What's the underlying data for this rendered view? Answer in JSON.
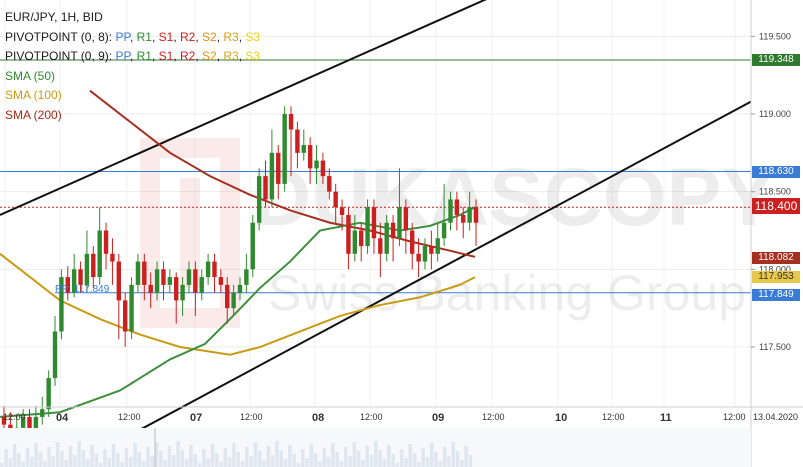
{
  "legend": {
    "title": "EUR/JPY, 1H, BID",
    "pivot1_prefix": "PIVOTPOINT (0, 8):",
    "pivot2_prefix": "PIVOTPOINT (0, 9):",
    "pivot_items": [
      "PP",
      "R1",
      "S1",
      "R2",
      "S2",
      "R3",
      "S3"
    ],
    "sma50": "SMA (50)",
    "sma100": "SMA (100)",
    "sma200": "SMA (200)"
  },
  "price_tags": {
    "top_r": "119.348",
    "r": "118.630",
    "current": "118.400",
    "sma200": "118.082",
    "sma100": "117.953",
    "pp": "117.849"
  },
  "pp_label": "PP: 117.849",
  "colors": {
    "candle_up": "#2f8a2f",
    "candle_down": "#cc1f1f",
    "sma50": "#3f8f3f",
    "sma100": "#c89b14",
    "sma200": "#a5301f",
    "pivot_pp": "#3a7bd5",
    "pivot_r": "#2f7a2f",
    "current": "#cc1f1f",
    "channel": "#111111"
  },
  "chart_data": {
    "type": "candlestick",
    "title": "EUR/JPY, 1H, BID",
    "y_ticks": [
      117.5,
      118.0,
      118.5,
      119.0,
      119.5
    ],
    "x_labels": [
      "12:00",
      "04",
      "12:00",
      "07",
      "12:00",
      "08",
      "12:00",
      "09",
      "12:00",
      "10",
      "12:00",
      "11",
      "12:00",
      "13.04.2020"
    ],
    "ylim": [
      116.9,
      119.8
    ],
    "current_price": 118.4,
    "levels": {
      "pivot_pp": 117.849,
      "pivot_r": 118.63,
      "pivot_top": 119.348,
      "sma200": 118.082,
      "sma100": 117.953
    },
    "channel_upper": [
      [
        0,
        118.35
      ],
      [
        490,
        119.75
      ],
      [
        751,
        120.55
      ]
    ],
    "channel_lower": [
      [
        135,
        116.95
      ],
      [
        751,
        119.08
      ]
    ],
    "sma50": [
      [
        0,
        117.05
      ],
      [
        60,
        117.08
      ],
      [
        120,
        117.22
      ],
      [
        170,
        117.42
      ],
      [
        205,
        117.52
      ],
      [
        230,
        117.68
      ],
      [
        260,
        117.88
      ],
      [
        290,
        118.05
      ],
      [
        320,
        118.25
      ],
      [
        360,
        118.3
      ],
      [
        400,
        118.25
      ],
      [
        430,
        118.28
      ],
      [
        460,
        118.35
      ],
      [
        475,
        118.4
      ]
    ],
    "sma100": [
      [
        0,
        118.1
      ],
      [
        30,
        117.95
      ],
      [
        60,
        117.8
      ],
      [
        100,
        117.68
      ],
      [
        140,
        117.58
      ],
      [
        180,
        117.5
      ],
      [
        230,
        117.45
      ],
      [
        260,
        117.5
      ],
      [
        300,
        117.6
      ],
      [
        340,
        117.7
      ],
      [
        380,
        117.77
      ],
      [
        420,
        117.82
      ],
      [
        460,
        117.9
      ],
      [
        475,
        117.95
      ]
    ],
    "sma200": [
      [
        90,
        119.15
      ],
      [
        130,
        118.95
      ],
      [
        170,
        118.75
      ],
      [
        210,
        118.6
      ],
      [
        250,
        118.48
      ],
      [
        290,
        118.38
      ],
      [
        330,
        118.3
      ],
      [
        370,
        118.25
      ],
      [
        410,
        118.18
      ],
      [
        450,
        118.12
      ],
      [
        475,
        118.08
      ]
    ],
    "candles": [
      [
        117.05,
        117.0,
        117.12,
        116.92
      ],
      [
        117.0,
        116.95,
        117.08,
        116.88
      ],
      [
        116.95,
        116.98,
        117.06,
        116.88
      ],
      [
        116.98,
        117.05,
        117.1,
        116.92
      ],
      [
        117.05,
        116.97,
        117.1,
        116.9
      ],
      [
        116.97,
        117.05,
        117.12,
        116.9
      ],
      [
        117.05,
        117.1,
        117.18,
        117.0
      ],
      [
        117.1,
        117.3,
        117.35,
        117.05
      ],
      [
        117.3,
        117.6,
        117.7,
        117.25
      ],
      [
        117.6,
        117.95,
        118.0,
        117.55
      ],
      [
        117.95,
        117.85,
        118.02,
        117.8
      ],
      [
        117.85,
        118.0,
        118.1,
        117.82
      ],
      [
        118.0,
        117.9,
        118.05,
        117.85
      ],
      [
        117.9,
        118.1,
        118.25,
        117.85
      ],
      [
        118.1,
        117.95,
        118.15,
        117.88
      ],
      [
        117.95,
        118.25,
        118.4,
        117.9
      ],
      [
        118.25,
        118.1,
        118.3,
        118.0
      ],
      [
        118.1,
        118.05,
        118.2,
        117.9
      ],
      [
        118.05,
        117.8,
        118.1,
        117.55
      ],
      [
        117.8,
        117.6,
        117.85,
        117.5
      ],
      [
        117.6,
        117.9,
        117.95,
        117.55
      ],
      [
        117.9,
        118.05,
        118.1,
        117.85
      ],
      [
        118.05,
        117.9,
        118.1,
        117.8
      ],
      [
        117.9,
        117.85,
        117.98,
        117.75
      ],
      [
        117.85,
        118.0,
        118.05,
        117.8
      ],
      [
        118.0,
        117.9,
        118.05,
        117.8
      ],
      [
        117.9,
        117.95,
        118.0,
        117.85
      ],
      [
        117.95,
        117.8,
        117.98,
        117.65
      ],
      [
        117.8,
        117.9,
        117.95,
        117.7
      ],
      [
        117.9,
        118.0,
        118.05,
        117.85
      ],
      [
        118.0,
        117.85,
        118.05,
        117.7
      ],
      [
        117.85,
        117.95,
        118.0,
        117.8
      ],
      [
        117.95,
        118.05,
        118.1,
        117.9
      ],
      [
        118.05,
        117.95,
        118.1,
        117.85
      ],
      [
        117.95,
        117.9,
        118.0,
        117.85
      ],
      [
        117.9,
        117.75,
        117.95,
        117.65
      ],
      [
        117.75,
        117.85,
        117.9,
        117.7
      ],
      [
        117.85,
        117.9,
        117.95,
        117.8
      ],
      [
        117.9,
        118.0,
        118.1,
        117.85
      ],
      [
        118.0,
        118.3,
        118.35,
        117.95
      ],
      [
        118.3,
        118.6,
        118.65,
        118.25
      ],
      [
        118.6,
        118.45,
        118.7,
        118.4
      ],
      [
        118.45,
        118.75,
        118.9,
        118.4
      ],
      [
        118.75,
        118.55,
        118.8,
        118.45
      ],
      [
        118.55,
        119.0,
        119.05,
        118.5
      ],
      [
        119.0,
        118.9,
        119.05,
        118.6
      ],
      [
        118.9,
        118.75,
        118.95,
        118.65
      ],
      [
        118.75,
        118.8,
        118.9,
        118.7
      ],
      [
        118.8,
        118.65,
        118.85,
        118.55
      ],
      [
        118.65,
        118.7,
        118.8,
        118.55
      ],
      [
        118.7,
        118.6,
        118.75,
        118.55
      ],
      [
        118.6,
        118.5,
        118.65,
        118.45
      ],
      [
        118.5,
        118.4,
        118.55,
        118.3
      ],
      [
        118.4,
        118.35,
        118.45,
        118.25
      ],
      [
        118.35,
        118.1,
        118.4,
        118.0
      ],
      [
        118.1,
        118.25,
        118.35,
        118.05
      ],
      [
        118.25,
        118.15,
        118.3,
        118.05
      ],
      [
        118.15,
        118.4,
        118.45,
        118.1
      ],
      [
        118.4,
        118.2,
        118.45,
        118.1
      ],
      [
        118.2,
        118.1,
        118.3,
        117.95
      ],
      [
        118.1,
        118.3,
        118.35,
        118.05
      ],
      [
        118.3,
        118.2,
        118.35,
        118.05
      ],
      [
        118.2,
        118.4,
        118.65,
        118.15
      ],
      [
        118.4,
        118.25,
        118.45,
        118.1
      ],
      [
        118.25,
        118.1,
        118.3,
        118.0
      ],
      [
        118.1,
        118.05,
        118.2,
        117.95
      ],
      [
        118.05,
        118.15,
        118.2,
        118.0
      ],
      [
        118.15,
        118.1,
        118.25,
        118.0
      ],
      [
        118.1,
        118.2,
        118.3,
        118.05
      ],
      [
        118.2,
        118.3,
        118.55,
        118.15
      ],
      [
        118.3,
        118.45,
        118.5,
        118.25
      ],
      [
        118.45,
        118.35,
        118.5,
        118.25
      ],
      [
        118.35,
        118.3,
        118.4,
        118.2
      ],
      [
        118.3,
        118.4,
        118.5,
        118.25
      ],
      [
        118.4,
        118.3,
        118.45,
        118.15
      ]
    ]
  }
}
